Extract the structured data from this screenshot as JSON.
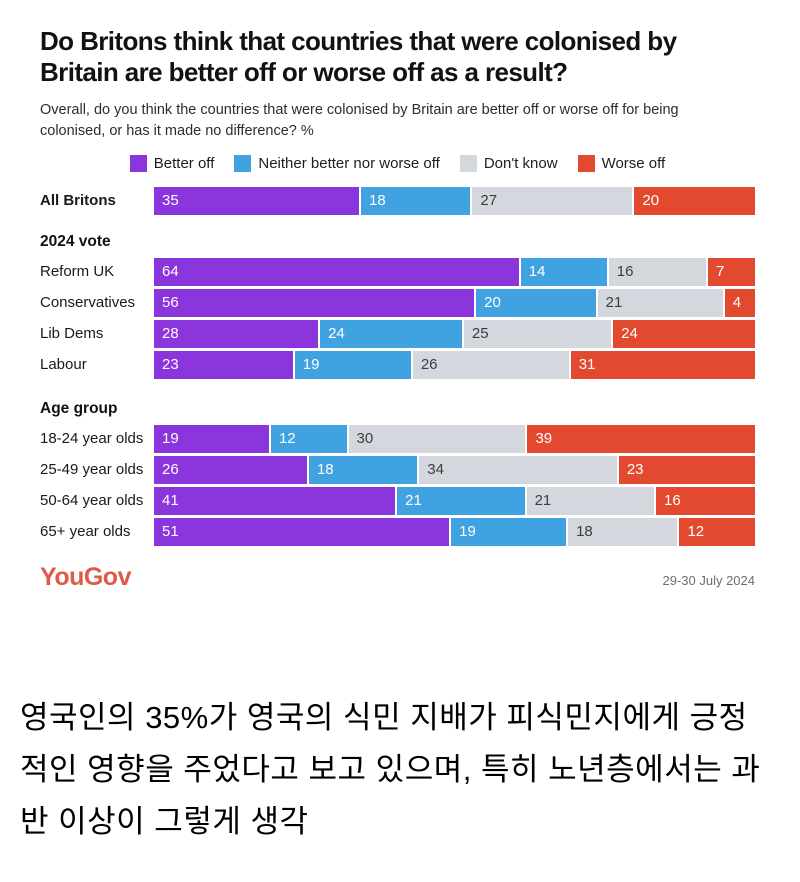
{
  "header": {
    "title": "Do Britons think that countries that were colonised by Britain are better off or worse off as a result?",
    "subtitle": "Overall, do you think the countries that were colonised by Britain are better off or worse off for being colonised, or has it made no difference? %"
  },
  "chart_data": {
    "type": "bar",
    "stacked": true,
    "unit": "%",
    "legend": [
      {
        "label": "Better off",
        "color": "#8B35DC",
        "value_text_color": "#FFFFFF"
      },
      {
        "label": "Neither better nor worse off",
        "color": "#41A2E2",
        "value_text_color": "#FFFFFF"
      },
      {
        "label": "Don't know",
        "color": "#D4D7DE",
        "value_text_color": "#3D3D3D"
      },
      {
        "label": "Worse off",
        "color": "#E2492E",
        "value_text_color": "#FFFFFF"
      }
    ],
    "groups": [
      {
        "header": "",
        "rows": [
          {
            "label": "All Britons",
            "bold": true,
            "values": [
              35,
              18,
              27,
              20
            ]
          }
        ]
      },
      {
        "header": "2024 vote",
        "rows": [
          {
            "label": "Reform UK",
            "bold": false,
            "values": [
              64,
              14,
              16,
              7
            ]
          },
          {
            "label": "Conservatives",
            "bold": false,
            "values": [
              56,
              20,
              21,
              4
            ]
          },
          {
            "label": "Lib Dems",
            "bold": false,
            "values": [
              28,
              24,
              25,
              24
            ]
          },
          {
            "label": "Labour",
            "bold": false,
            "values": [
              23,
              19,
              26,
              31
            ]
          }
        ]
      },
      {
        "header": "Age group",
        "rows": [
          {
            "label": "18-24 year olds",
            "bold": false,
            "values": [
              19,
              12,
              30,
              39
            ]
          },
          {
            "label": "25-49 year olds",
            "bold": false,
            "values": [
              26,
              18,
              34,
              23
            ]
          },
          {
            "label": "50-64 year olds",
            "bold": false,
            "values": [
              41,
              21,
              21,
              16
            ]
          },
          {
            "label": "65+ year olds",
            "bold": false,
            "values": [
              51,
              19,
              18,
              12
            ]
          }
        ]
      }
    ]
  },
  "footer": {
    "source": "YouGov",
    "source_color": "#DE5B4B",
    "date": "29-30 July 2024"
  },
  "caption": {
    "lines": [
      "영국인의 35%가 영국의 식민 지배가 피식민지에게 긍정",
      "적인 영향을 주었다고 보고 있으며, 특히 노년층에서는 과",
      "반 이상이 그렇게 생각"
    ]
  }
}
